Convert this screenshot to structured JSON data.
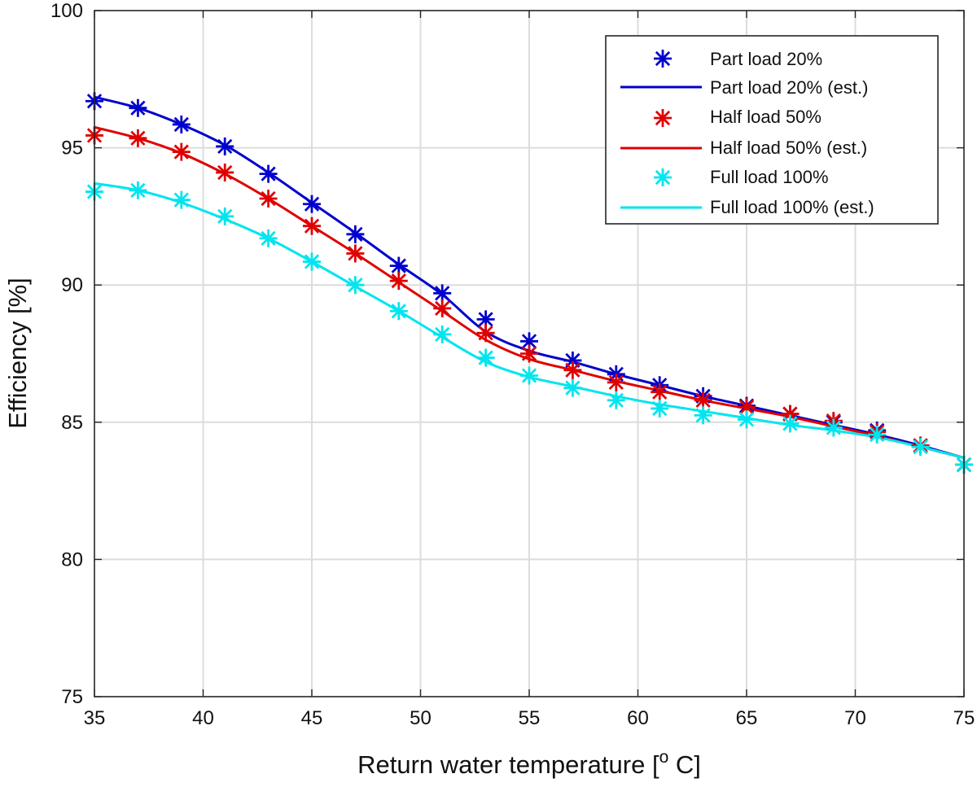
{
  "chart_data": {
    "type": "line",
    "title": "",
    "xlabel_main": "Return water temperature [",
    "xlabel_sup": "o",
    "xlabel_unit": " C]",
    "ylabel": "Efficiency [%]",
    "xlim": [
      35,
      75
    ],
    "ylim": [
      75,
      100
    ],
    "xticks": [
      35,
      40,
      45,
      50,
      55,
      60,
      65,
      70,
      75
    ],
    "yticks": [
      75,
      80,
      85,
      90,
      95,
      100
    ],
    "grid": true,
    "legend_position": "top-right",
    "legend": [
      "Part load 20%",
      "Part load 20% (est.)",
      "Half load 50%",
      "Half load 50% (est.)",
      "Full load 100%",
      "Full load 100% (est.)"
    ],
    "series": [
      {
        "name": "Part load 20%",
        "est_name": "Part load 20% (est.)",
        "color": "#0000CD",
        "x": [
          35,
          37,
          39,
          41,
          43,
          45,
          47,
          49,
          51,
          53,
          55,
          57,
          59,
          61,
          63,
          65,
          67,
          69,
          71,
          73,
          75
        ],
        "measured": [
          96.7,
          96.45,
          95.85,
          95.05,
          94.05,
          92.95,
          91.85,
          90.7,
          89.7,
          88.75,
          87.95,
          87.25,
          86.75,
          86.35,
          85.95,
          85.6,
          85.3,
          85.0,
          84.7,
          84.15,
          83.45
        ],
        "estimated": [
          96.85,
          96.45,
          95.85,
          95.1,
          94.1,
          93.0,
          91.9,
          90.75,
          89.65,
          88.3,
          87.6,
          87.2,
          86.75,
          86.35,
          85.95,
          85.6,
          85.25,
          84.9,
          84.55,
          84.15,
          83.7
        ]
      },
      {
        "name": "Half load 50%",
        "est_name": "Half load 50% (est.)",
        "color": "#E00000",
        "x": [
          35,
          37,
          39,
          41,
          43,
          45,
          47,
          49,
          51,
          53,
          55,
          57,
          59,
          61,
          63,
          65,
          67,
          69,
          71,
          73,
          75
        ],
        "measured": [
          95.45,
          95.35,
          94.85,
          94.1,
          93.15,
          92.15,
          91.15,
          90.15,
          89.15,
          88.25,
          87.5,
          86.9,
          86.45,
          86.1,
          85.8,
          85.55,
          85.3,
          85.05,
          84.65,
          84.15,
          83.45
        ],
        "estimated": [
          95.75,
          95.35,
          94.8,
          94.05,
          93.15,
          92.15,
          91.15,
          90.1,
          89.05,
          88.0,
          87.3,
          86.9,
          86.5,
          86.15,
          85.8,
          85.5,
          85.2,
          84.85,
          84.5,
          84.1,
          83.7
        ]
      },
      {
        "name": "Full load 100%",
        "est_name": "Full load 100% (est.)",
        "color": "#00E5EE",
        "x": [
          35,
          37,
          39,
          41,
          43,
          45,
          47,
          49,
          51,
          53,
          55,
          57,
          59,
          61,
          63,
          65,
          67,
          69,
          71,
          73,
          75
        ],
        "measured": [
          93.4,
          93.45,
          93.1,
          92.5,
          91.7,
          90.85,
          90.0,
          89.05,
          88.2,
          87.35,
          86.7,
          86.25,
          85.8,
          85.5,
          85.25,
          85.1,
          84.95,
          84.8,
          84.55,
          84.1,
          83.45
        ],
        "estimated": [
          93.7,
          93.45,
          93.0,
          92.4,
          91.7,
          90.85,
          89.95,
          89.05,
          88.1,
          87.2,
          86.65,
          86.3,
          85.95,
          85.65,
          85.4,
          85.15,
          84.9,
          84.7,
          84.45,
          84.1,
          83.7
        ]
      }
    ]
  }
}
